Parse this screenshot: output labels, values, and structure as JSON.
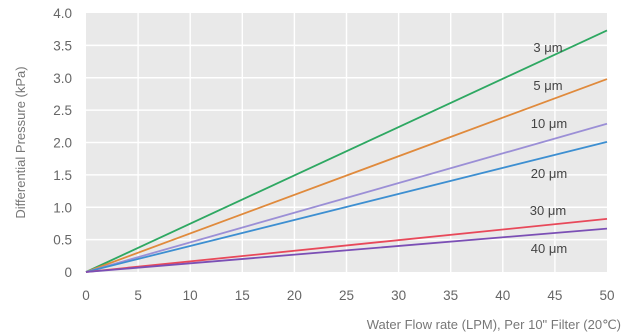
{
  "chart_data": {
    "type": "line",
    "title": "",
    "xlabel": "Water Flow rate (LPM), Per 10\" Filter (20℃)",
    "ylabel": "Differential Pressure (kPa)",
    "xlim": [
      0,
      50
    ],
    "ylim": [
      0,
      4.0
    ],
    "x_ticks": [
      "0",
      "5",
      "10",
      "15",
      "20",
      "25",
      "30",
      "35",
      "40",
      "45",
      "50"
    ],
    "y_ticks": [
      "0",
      "0.5",
      "1.0",
      "1.5",
      "2.0",
      "2.5",
      "3.0",
      "3.5",
      "4.0"
    ],
    "grid": true,
    "x": [
      0,
      50
    ],
    "series": [
      {
        "name": "3 μm",
        "values": [
          0,
          3.73
        ],
        "color": "#2ea862"
      },
      {
        "name": "5 μm",
        "values": [
          0,
          2.98
        ],
        "color": "#e08a3c"
      },
      {
        "name": "10 μm",
        "values": [
          0,
          2.29
        ],
        "color": "#9b8fd6"
      },
      {
        "name": "20 μm",
        "values": [
          0,
          2.01
        ],
        "color": "#3d8fd1"
      },
      {
        "name": "30 μm",
        "values": [
          0,
          0.82
        ],
        "color": "#e8495a"
      },
      {
        "name": "40 μm",
        "values": [
          0,
          0.67
        ],
        "color": "#7b4fb5"
      }
    ]
  }
}
